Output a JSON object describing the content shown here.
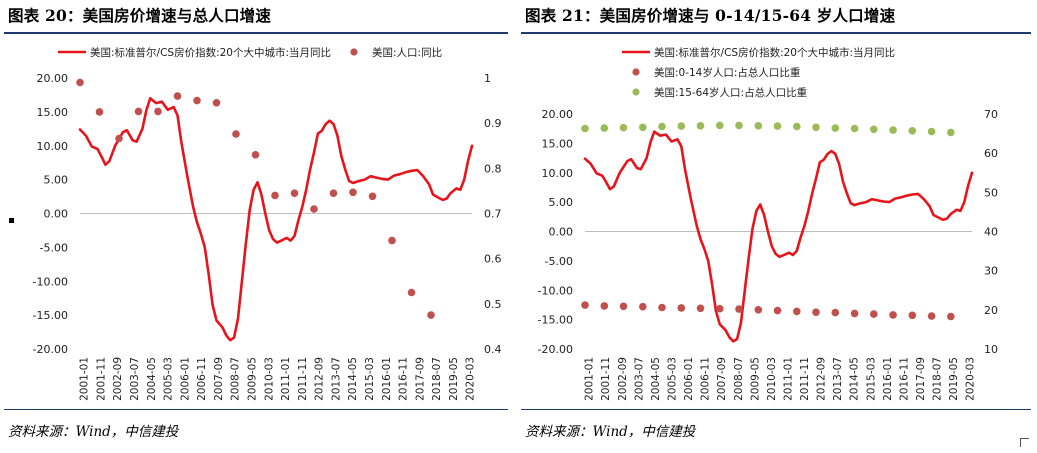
{
  "left": {
    "title": "图表 20：美国房价增速与总人口增速",
    "source": "资料来源：Wind，中信建投"
  },
  "right": {
    "title": "图表 21：美国房价增速与 0-14/15-64 岁人口增速",
    "source": "资料来源：Wind，中信建投"
  },
  "chart_data": [
    {
      "type": "line",
      "title": "",
      "x_tick_labels": [
        "2001-01",
        "2001-11",
        "2002-09",
        "2003-07",
        "2004-05",
        "2005-03",
        "2006-01",
        "2006-11",
        "2007-09",
        "2008-07",
        "2009-05",
        "2010-03",
        "2011-01",
        "2011-11",
        "2012-09",
        "2013-07",
        "2014-05",
        "2015-03",
        "2016-01",
        "2016-11",
        "2017-09",
        "2018-07",
        "2019-05",
        "2020-03"
      ],
      "y_left": {
        "range": [
          -20,
          20
        ],
        "ticks": [
          "20.00",
          "15.00",
          "10.00",
          "5.00",
          "0.00",
          "-5.00",
          "-10.00",
          "-15.00",
          "-20.00"
        ]
      },
      "y_right": {
        "range": [
          0.4,
          1.0
        ],
        "ticks": [
          "1",
          "0.9",
          "0.8",
          "0.7",
          "0.6",
          "0.5",
          "0.4"
        ]
      },
      "line_series": {
        "name": "美国:标准普尔/CS房价指数:20个大中城市:当月同比",
        "color": "#e8141b",
        "points": [
          [
            2001.0,
            12.4
          ],
          [
            2001.3,
            11.5
          ],
          [
            2001.6,
            9.9
          ],
          [
            2001.9,
            9.5
          ],
          [
            2002.1,
            8.4
          ],
          [
            2002.3,
            7.2
          ],
          [
            2002.5,
            7.7
          ],
          [
            2002.8,
            10.0
          ],
          [
            2003.2,
            12.0
          ],
          [
            2003.4,
            12.3
          ],
          [
            2003.7,
            10.8
          ],
          [
            2003.9,
            10.6
          ],
          [
            2004.2,
            12.5
          ],
          [
            2004.4,
            15.2
          ],
          [
            2004.6,
            17.0
          ],
          [
            2004.9,
            16.3
          ],
          [
            2005.2,
            16.5
          ],
          [
            2005.5,
            15.3
          ],
          [
            2005.8,
            15.7
          ],
          [
            2006.0,
            14.5
          ],
          [
            2006.2,
            10.5
          ],
          [
            2006.5,
            5.5
          ],
          [
            2006.8,
            1.0
          ],
          [
            2007.0,
            -1.3
          ],
          [
            2007.2,
            -3.0
          ],
          [
            2007.4,
            -5.0
          ],
          [
            2007.6,
            -9.0
          ],
          [
            2007.8,
            -13.5
          ],
          [
            2008.0,
            -15.8
          ],
          [
            2008.3,
            -16.8
          ],
          [
            2008.5,
            -18.0
          ],
          [
            2008.7,
            -18.7
          ],
          [
            2008.9,
            -18.3
          ],
          [
            2009.1,
            -15.5
          ],
          [
            2009.3,
            -10.0
          ],
          [
            2009.5,
            -4.5
          ],
          [
            2009.7,
            0.5
          ],
          [
            2009.9,
            3.5
          ],
          [
            2010.1,
            4.6
          ],
          [
            2010.3,
            2.8
          ],
          [
            2010.5,
            0.0
          ],
          [
            2010.7,
            -2.5
          ],
          [
            2010.9,
            -3.8
          ],
          [
            2011.1,
            -4.3
          ],
          [
            2011.4,
            -3.9
          ],
          [
            2011.6,
            -3.6
          ],
          [
            2011.8,
            -4.0
          ],
          [
            2012.0,
            -3.3
          ],
          [
            2012.2,
            -1.0
          ],
          [
            2012.4,
            1.0
          ],
          [
            2012.6,
            3.5
          ],
          [
            2012.8,
            6.5
          ],
          [
            2013.0,
            9.0
          ],
          [
            2013.2,
            11.8
          ],
          [
            2013.4,
            12.2
          ],
          [
            2013.6,
            13.2
          ],
          [
            2013.8,
            13.7
          ],
          [
            2014.0,
            13.2
          ],
          [
            2014.2,
            11.5
          ],
          [
            2014.4,
            8.5
          ],
          [
            2014.6,
            6.5
          ],
          [
            2014.8,
            4.8
          ],
          [
            2015.0,
            4.5
          ],
          [
            2015.3,
            4.8
          ],
          [
            2015.6,
            5.0
          ],
          [
            2015.9,
            5.5
          ],
          [
            2016.2,
            5.3
          ],
          [
            2016.5,
            5.1
          ],
          [
            2016.8,
            5.0
          ],
          [
            2017.1,
            5.6
          ],
          [
            2017.4,
            5.8
          ],
          [
            2017.7,
            6.1
          ],
          [
            2018.0,
            6.3
          ],
          [
            2018.3,
            6.4
          ],
          [
            2018.6,
            5.5
          ],
          [
            2018.9,
            4.3
          ],
          [
            2019.1,
            2.8
          ],
          [
            2019.4,
            2.3
          ],
          [
            2019.6,
            2.0
          ],
          [
            2019.8,
            2.2
          ],
          [
            2020.0,
            3.0
          ],
          [
            2020.3,
            3.7
          ],
          [
            2020.5,
            3.5
          ],
          [
            2020.7,
            5.0
          ],
          [
            2020.9,
            7.8
          ],
          [
            2021.1,
            10.0
          ]
        ]
      },
      "scatter_series": [
        {
          "name": "美国:人口:同比",
          "color": "#c0504d",
          "axis": "right",
          "points": [
            [
              2001.0,
              0.99
            ],
            [
              2002.0,
              0.925
            ],
            [
              2003.0,
              0.866
            ],
            [
              2004.0,
              0.926
            ],
            [
              2005.0,
              0.926
            ],
            [
              2006.0,
              0.96
            ],
            [
              2007.0,
              0.95
            ],
            [
              2008.0,
              0.945
            ],
            [
              2009.0,
              0.876
            ],
            [
              2010.0,
              0.83
            ],
            [
              2011.0,
              0.74
            ],
            [
              2012.0,
              0.745
            ],
            [
              2013.0,
              0.71
            ],
            [
              2014.0,
              0.745
            ],
            [
              2015.0,
              0.747
            ],
            [
              2016.0,
              0.738
            ],
            [
              2017.0,
              0.64
            ],
            [
              2018.0,
              0.525
            ],
            [
              2019.0,
              0.475
            ]
          ]
        }
      ]
    },
    {
      "type": "line",
      "title": "",
      "x_tick_labels": [
        "2001-01",
        "2001-11",
        "2002-09",
        "2003-07",
        "2004-05",
        "2005-03",
        "2006-01",
        "2006-11",
        "2007-09",
        "2008-07",
        "2009-05",
        "2010-03",
        "2011-01",
        "2011-11",
        "2012-09",
        "2013-07",
        "2014-05",
        "2015-03",
        "2016-01",
        "2016-11",
        "2017-09",
        "2018-07",
        "2019-05",
        "2020-03"
      ],
      "y_left": {
        "range": [
          -20,
          20
        ],
        "ticks": [
          "20.00",
          "15.00",
          "10.00",
          "5.00",
          "0.00",
          "-5.00",
          "-10.00",
          "-15.00",
          "-20.00"
        ]
      },
      "y_right": {
        "range": [
          10,
          70
        ],
        "ticks": [
          "70",
          "60",
          "50",
          "40",
          "30",
          "20",
          "10"
        ]
      },
      "line_series": {
        "name": "美国:标准普尔/CS房价指数:20个大中城市:当月同比",
        "color": "#e8141b",
        "points": [
          [
            2001.0,
            12.4
          ],
          [
            2001.3,
            11.5
          ],
          [
            2001.6,
            9.9
          ],
          [
            2001.9,
            9.5
          ],
          [
            2002.1,
            8.4
          ],
          [
            2002.3,
            7.2
          ],
          [
            2002.5,
            7.7
          ],
          [
            2002.8,
            10.0
          ],
          [
            2003.2,
            12.0
          ],
          [
            2003.4,
            12.3
          ],
          [
            2003.7,
            10.8
          ],
          [
            2003.9,
            10.6
          ],
          [
            2004.2,
            12.5
          ],
          [
            2004.4,
            15.2
          ],
          [
            2004.6,
            17.0
          ],
          [
            2004.9,
            16.3
          ],
          [
            2005.2,
            16.5
          ],
          [
            2005.5,
            15.3
          ],
          [
            2005.8,
            15.7
          ],
          [
            2006.0,
            14.5
          ],
          [
            2006.2,
            10.5
          ],
          [
            2006.5,
            5.5
          ],
          [
            2006.8,
            1.0
          ],
          [
            2007.0,
            -1.3
          ],
          [
            2007.2,
            -3.0
          ],
          [
            2007.4,
            -5.0
          ],
          [
            2007.6,
            -9.0
          ],
          [
            2007.8,
            -13.5
          ],
          [
            2008.0,
            -15.8
          ],
          [
            2008.3,
            -16.8
          ],
          [
            2008.5,
            -18.0
          ],
          [
            2008.7,
            -18.7
          ],
          [
            2008.9,
            -18.3
          ],
          [
            2009.1,
            -15.5
          ],
          [
            2009.3,
            -10.0
          ],
          [
            2009.5,
            -4.5
          ],
          [
            2009.7,
            0.5
          ],
          [
            2009.9,
            3.5
          ],
          [
            2010.1,
            4.6
          ],
          [
            2010.3,
            2.8
          ],
          [
            2010.5,
            0.0
          ],
          [
            2010.7,
            -2.5
          ],
          [
            2010.9,
            -3.8
          ],
          [
            2011.1,
            -4.3
          ],
          [
            2011.4,
            -3.9
          ],
          [
            2011.6,
            -3.6
          ],
          [
            2011.8,
            -4.0
          ],
          [
            2012.0,
            -3.3
          ],
          [
            2012.2,
            -1.0
          ],
          [
            2012.4,
            1.0
          ],
          [
            2012.6,
            3.5
          ],
          [
            2012.8,
            6.5
          ],
          [
            2013.0,
            9.0
          ],
          [
            2013.2,
            11.8
          ],
          [
            2013.4,
            12.2
          ],
          [
            2013.6,
            13.2
          ],
          [
            2013.8,
            13.7
          ],
          [
            2014.0,
            13.2
          ],
          [
            2014.2,
            11.5
          ],
          [
            2014.4,
            8.5
          ],
          [
            2014.6,
            6.5
          ],
          [
            2014.8,
            4.8
          ],
          [
            2015.0,
            4.5
          ],
          [
            2015.3,
            4.8
          ],
          [
            2015.6,
            5.0
          ],
          [
            2015.9,
            5.5
          ],
          [
            2016.2,
            5.3
          ],
          [
            2016.5,
            5.1
          ],
          [
            2016.8,
            5.0
          ],
          [
            2017.1,
            5.6
          ],
          [
            2017.4,
            5.8
          ],
          [
            2017.7,
            6.1
          ],
          [
            2018.0,
            6.3
          ],
          [
            2018.3,
            6.4
          ],
          [
            2018.6,
            5.5
          ],
          [
            2018.9,
            4.3
          ],
          [
            2019.1,
            2.8
          ],
          [
            2019.4,
            2.3
          ],
          [
            2019.6,
            2.0
          ],
          [
            2019.8,
            2.2
          ],
          [
            2020.0,
            3.0
          ],
          [
            2020.3,
            3.7
          ],
          [
            2020.5,
            3.5
          ],
          [
            2020.7,
            5.0
          ],
          [
            2020.9,
            7.8
          ],
          [
            2021.1,
            10.0
          ]
        ]
      },
      "scatter_series": [
        {
          "name": "美国:0-14岁人口:占总人口比重",
          "color": "#c0504d",
          "axis": "right",
          "points": [
            [
              2001.0,
              21.2
            ],
            [
              2002.0,
              21.0
            ],
            [
              2003.0,
              20.9
            ],
            [
              2004.0,
              20.8
            ],
            [
              2005.0,
              20.6
            ],
            [
              2006.0,
              20.5
            ],
            [
              2007.0,
              20.4
            ],
            [
              2008.0,
              20.3
            ],
            [
              2009.0,
              20.2
            ],
            [
              2010.0,
              20.0
            ],
            [
              2011.0,
              19.8
            ],
            [
              2012.0,
              19.6
            ],
            [
              2013.0,
              19.4
            ],
            [
              2014.0,
              19.3
            ],
            [
              2015.0,
              19.1
            ],
            [
              2016.0,
              18.9
            ],
            [
              2017.0,
              18.7
            ],
            [
              2018.0,
              18.6
            ],
            [
              2019.0,
              18.4
            ],
            [
              2020.0,
              18.3
            ]
          ]
        },
        {
          "name": "美国:15-64岁人口:占总人口比重",
          "color": "#9bbb59",
          "axis": "right",
          "points": [
            [
              2001.0,
              66.3
            ],
            [
              2002.0,
              66.4
            ],
            [
              2003.0,
              66.5
            ],
            [
              2004.0,
              66.6
            ],
            [
              2005.0,
              66.8
            ],
            [
              2006.0,
              66.9
            ],
            [
              2007.0,
              67.0
            ],
            [
              2008.0,
              67.1
            ],
            [
              2009.0,
              67.1
            ],
            [
              2010.0,
              67.0
            ],
            [
              2011.0,
              66.9
            ],
            [
              2012.0,
              66.8
            ],
            [
              2013.0,
              66.6
            ],
            [
              2014.0,
              66.4
            ],
            [
              2015.0,
              66.3
            ],
            [
              2016.0,
              66.1
            ],
            [
              2017.0,
              65.9
            ],
            [
              2018.0,
              65.7
            ],
            [
              2019.0,
              65.5
            ],
            [
              2020.0,
              65.3
            ]
          ]
        }
      ]
    }
  ]
}
